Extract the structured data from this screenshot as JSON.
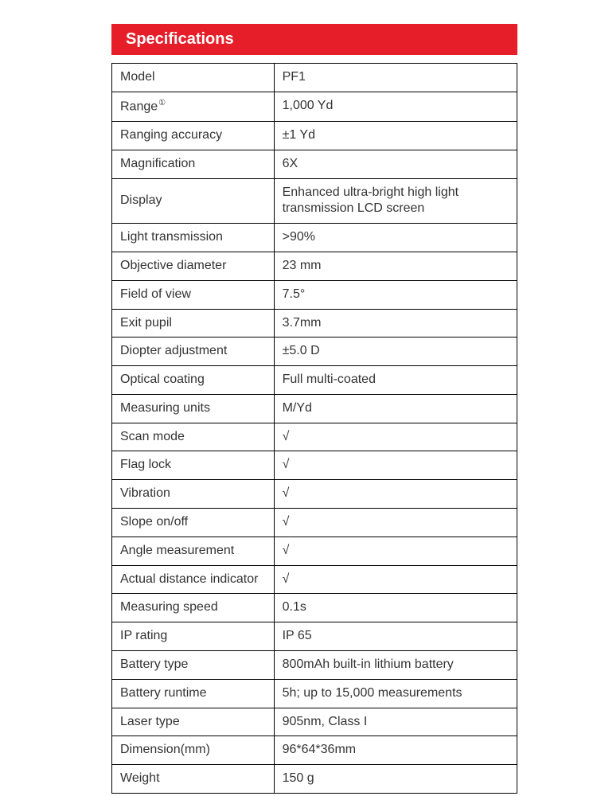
{
  "title": "Specifications",
  "colors": {
    "header_bg": "#e61e2a",
    "header_text": "#ffffff",
    "border": "#000000",
    "text": "#333333",
    "background": "#ffffff"
  },
  "table": {
    "rows": [
      {
        "label": "Model",
        "value": "PF1",
        "superscript": ""
      },
      {
        "label": "Range",
        "value": "1,000 Yd",
        "superscript": "①"
      },
      {
        "label": "Ranging accuracy",
        "value": "±1 Yd",
        "superscript": ""
      },
      {
        "label": "Magnification",
        "value": "6X",
        "superscript": ""
      },
      {
        "label": "Display",
        "value": "Enhanced ultra-bright high light transmission LCD screen",
        "superscript": ""
      },
      {
        "label": "Light transmission",
        "value": ">90%",
        "superscript": ""
      },
      {
        "label": "Objective diameter",
        "value": "23 mm",
        "superscript": ""
      },
      {
        "label": "Field of view",
        "value": "7.5°",
        "superscript": ""
      },
      {
        "label": "Exit pupil",
        "value": "3.7mm",
        "superscript": ""
      },
      {
        "label": "Diopter adjustment",
        "value": "±5.0 D",
        "superscript": ""
      },
      {
        "label": "Optical coating",
        "value": "Full multi-coated",
        "superscript": ""
      },
      {
        "label": "Measuring units",
        "value": "M/Yd",
        "superscript": ""
      },
      {
        "label": "Scan mode",
        "value": "√",
        "superscript": ""
      },
      {
        "label": "Flag lock",
        "value": "√",
        "superscript": ""
      },
      {
        "label": "Vibration",
        "value": "√",
        "superscript": ""
      },
      {
        "label": "Slope on/off",
        "value": "√",
        "superscript": ""
      },
      {
        "label": "Angle measurement",
        "value": "√",
        "superscript": ""
      },
      {
        "label": "Actual distance indicator",
        "value": "√",
        "superscript": ""
      },
      {
        "label": "Measuring speed",
        "value": "0.1s",
        "superscript": ""
      },
      {
        "label": "IP rating",
        "value": "IP 65",
        "superscript": ""
      },
      {
        "label": "Battery type",
        "value": "800mAh built-in lithium battery",
        "superscript": ""
      },
      {
        "label": "Battery runtime",
        "value": "5h; up to 15,000 measurements",
        "superscript": ""
      },
      {
        "label": "Laser type",
        "value": "905nm, Class I",
        "superscript": ""
      },
      {
        "label": "Dimension(mm)",
        "value": "96*64*36mm",
        "superscript": ""
      },
      {
        "label": "Weight",
        "value": "150 g",
        "superscript": ""
      }
    ]
  }
}
